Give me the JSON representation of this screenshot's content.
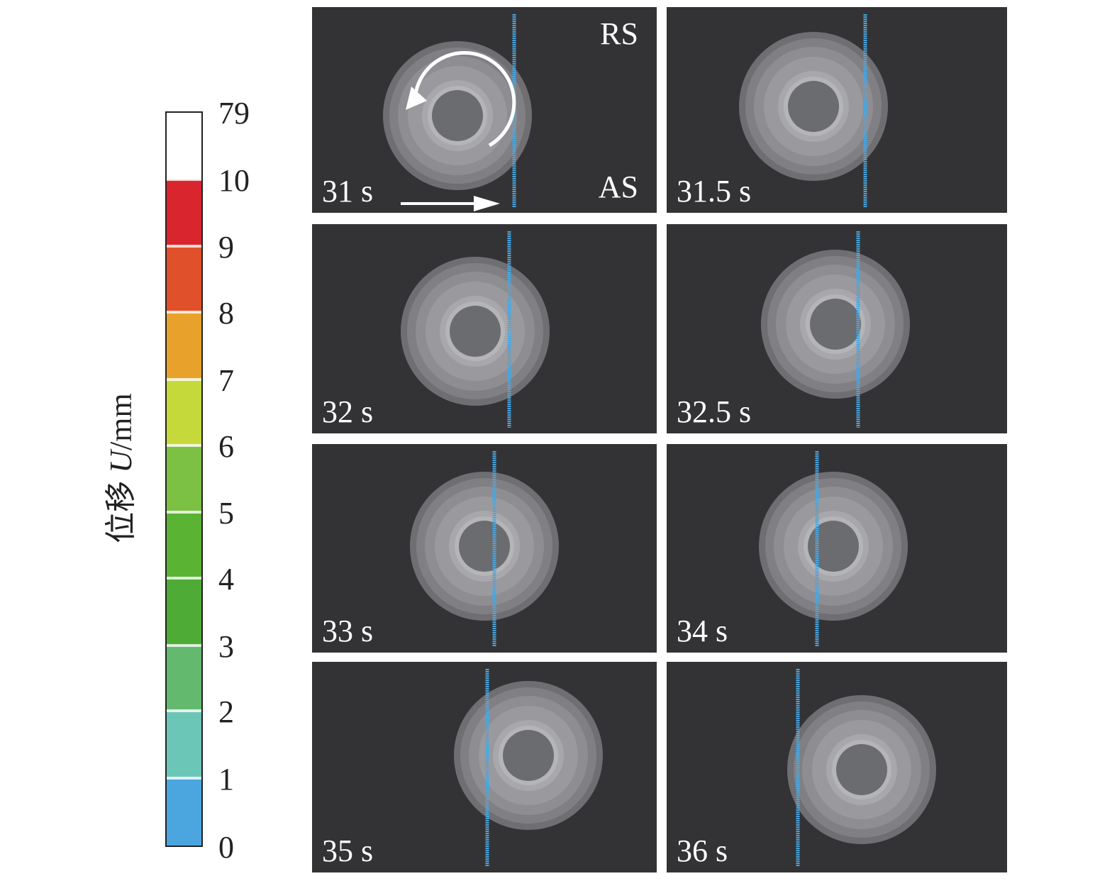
{
  "colorbar": {
    "title": {
      "prefix": "位移 ",
      "symbol": "U",
      "unit": "/mm"
    },
    "labels": [
      "79",
      "10",
      "9",
      "8",
      "7",
      "6",
      "5",
      "4",
      "3",
      "2",
      "1",
      "0"
    ]
  },
  "panels": [
    {
      "label": "31 s",
      "top_note": "RS",
      "bottom_note": "AS"
    },
    {
      "label": "31.5 s"
    },
    {
      "label": "32 s"
    },
    {
      "label": "32.5 s"
    },
    {
      "label": "33 s"
    },
    {
      "label": "34 s"
    },
    {
      "label": "35 s"
    },
    {
      "label": "36 s"
    }
  ]
}
